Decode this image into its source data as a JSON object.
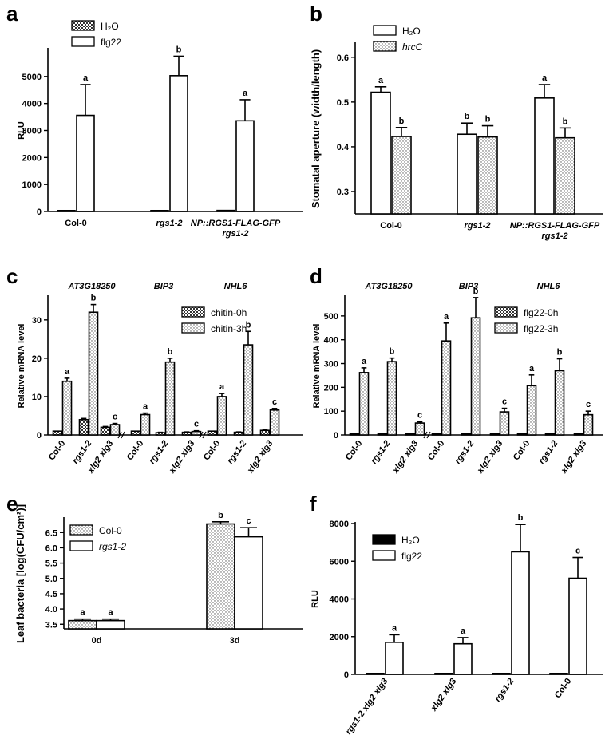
{
  "figure": {
    "panels": [
      "a",
      "b",
      "c",
      "d",
      "e",
      "f"
    ],
    "fill_colors": {
      "black": "#000000",
      "white": "#ffffff",
      "dots": "#e8e8e8",
      "checker": "#555555"
    }
  },
  "chart_data": [
    {
      "panel": "a",
      "type": "bar",
      "ylabel": "RLU",
      "ylim": [
        0,
        6000
      ],
      "yticks": [
        0,
        1000,
        2000,
        3000,
        4000,
        5000
      ],
      "categories": [
        "Col-0",
        "rgs1-2",
        "NP::RGS1-FLAG-GFP\nrgs1-2"
      ],
      "category_italic": [
        false,
        true,
        true
      ],
      "series": [
        {
          "name": "H2O",
          "legend": "H₂O",
          "pattern": "checker",
          "values": [
            30,
            30,
            40
          ],
          "errors": [
            0,
            0,
            0
          ],
          "letters": [
            "",
            "",
            ""
          ]
        },
        {
          "name": "flg22",
          "legend": "flg22",
          "pattern": "white",
          "values": [
            3560,
            5030,
            3360
          ],
          "errors": [
            1140,
            720,
            780
          ],
          "letters": [
            "a",
            "b",
            "a"
          ]
        }
      ]
    },
    {
      "panel": "b",
      "type": "bar",
      "ylabel": "Stomatal aperture (width/length)",
      "ylim": [
        0.25,
        0.63
      ],
      "yticks": [
        "0.3",
        "0.4",
        "0.5",
        "0.6"
      ],
      "categories": [
        "Col-0",
        "rgs1-2",
        "NP::RGS1-FLAG-GFP\nrgs1-2"
      ],
      "category_italic": [
        false,
        true,
        true
      ],
      "series": [
        {
          "name": "H2O",
          "legend": "H₂O",
          "pattern": "white",
          "values": [
            0.522,
            0.428,
            0.509
          ],
          "errors": [
            0.012,
            0.025,
            0.03
          ],
          "letters": [
            "a",
            "b",
            "a"
          ]
        },
        {
          "name": "hrcC",
          "legend": "hrcC",
          "legend_italic": true,
          "pattern": "dots",
          "values": [
            0.423,
            0.422,
            0.42
          ],
          "errors": [
            0.02,
            0.025,
            0.022
          ],
          "letters": [
            "b",
            "b",
            "b"
          ]
        }
      ]
    },
    {
      "panel": "c",
      "type": "bar",
      "ylabel": "Relative mRNA level",
      "ylim": [
        0,
        36
      ],
      "yticks": [
        0,
        10,
        20,
        30
      ],
      "gene_labels": [
        "AT3G18250",
        "BIP3",
        "NHL6"
      ],
      "categories": [
        "Col-0",
        "rgs1-2",
        "xlg2 xlg3",
        "Col-0",
        "rgs1-2",
        "xlg2 xlg3",
        "Col-0",
        "rgs1-2",
        "xlg2 xlg3"
      ],
      "category_italic": [
        false,
        true,
        true,
        false,
        true,
        true,
        false,
        true,
        true
      ],
      "series": [
        {
          "name": "chitin-0h",
          "legend": "chitin-0h",
          "pattern": "checker",
          "values": [
            1.0,
            4.0,
            2.0,
            1.0,
            0.6,
            0.7,
            1.0,
            0.7,
            1.2
          ],
          "errors": [
            0,
            0.3,
            0.2,
            0,
            0.1,
            0.1,
            0,
            0.1,
            0.1
          ],
          "letters": [
            "",
            "",
            "",
            "",
            "",
            "",
            "",
            "",
            ""
          ]
        },
        {
          "name": "chitin-3h",
          "legend": "chitin-3h",
          "pattern": "dots",
          "values": [
            14.0,
            32.0,
            2.7,
            5.3,
            19.0,
            0.9,
            10.0,
            23.5,
            6.5
          ],
          "errors": [
            0.8,
            2.0,
            0.3,
            0.4,
            1.0,
            0.2,
            0.8,
            3.5,
            0.4
          ],
          "letters": [
            "a",
            "b",
            "c",
            "a",
            "b",
            "c",
            "a",
            "b",
            "c"
          ]
        }
      ]
    },
    {
      "panel": "d",
      "type": "bar",
      "ylabel": "Relative mRNA level",
      "ylim": [
        0,
        580
      ],
      "yticks": [
        0,
        100,
        200,
        300,
        400,
        500
      ],
      "gene_labels": [
        "AT3G18250",
        "BIP3",
        "NHL6"
      ],
      "categories": [
        "Col-0",
        "rgs1-2",
        "xlg2 xlg3",
        "Col-0",
        "rgs1-2",
        "xlg2 xlg3",
        "Col-0",
        "rgs1-2",
        "xlg2 xlg3"
      ],
      "category_italic": [
        false,
        true,
        true,
        false,
        true,
        true,
        false,
        true,
        true
      ],
      "series": [
        {
          "name": "flg22-0h",
          "legend": "flg22-0h",
          "pattern": "checker",
          "values": [
            1,
            1,
            1,
            1,
            1,
            1,
            1,
            1,
            1
          ],
          "errors": [
            0,
            0,
            0,
            0,
            0,
            0,
            0,
            0,
            0
          ],
          "letters": [
            "",
            "",
            "",
            "",
            "",
            "",
            "",
            "",
            ""
          ]
        },
        {
          "name": "flg22-3h",
          "legend": "flg22-3h",
          "pattern": "dots",
          "values": [
            262,
            308,
            50,
            395,
            492,
            97,
            207,
            270,
            85
          ],
          "errors": [
            20,
            15,
            5,
            75,
            85,
            15,
            45,
            50,
            15
          ],
          "letters": [
            "a",
            "b",
            "c",
            "a",
            "b",
            "c",
            "a",
            "b",
            "c"
          ]
        }
      ]
    },
    {
      "panel": "e",
      "type": "bar",
      "ylabel": "Leaf bacteria [log(CFU/cm²)]",
      "ylim": [
        3.35,
        6.95
      ],
      "yticks": [
        "3.5",
        "4.0",
        "4.5",
        "5.0",
        "5.5",
        "6.0",
        "6.5"
      ],
      "categories": [
        "0d",
        "3d"
      ],
      "category_italic": [
        false,
        false
      ],
      "series": [
        {
          "name": "Col-0",
          "legend": "Col-0",
          "pattern": "dots",
          "values": [
            3.62,
            6.78
          ],
          "errors": [
            0.05,
            0.07
          ],
          "letters": [
            "a",
            "b"
          ]
        },
        {
          "name": "rgs1-2",
          "legend": "rgs1-2",
          "legend_italic": true,
          "pattern": "white",
          "values": [
            3.62,
            6.36
          ],
          "errors": [
            0.05,
            0.3
          ],
          "letters": [
            "a",
            "c"
          ]
        }
      ]
    },
    {
      "panel": "f",
      "type": "bar",
      "ylabel": "RLU",
      "ylim": [
        0,
        8000
      ],
      "yticks": [
        0,
        2000,
        4000,
        6000,
        8000
      ],
      "categories": [
        "rgs1-2 xlg2 xlg3",
        "xlg2 xlg3",
        "rgs1-2",
        "Col-0"
      ],
      "category_italic": [
        true,
        true,
        true,
        false
      ],
      "series": [
        {
          "name": "H2O",
          "legend": "H₂O",
          "pattern": "black",
          "values": [
            20,
            20,
            20,
            20
          ],
          "errors": [
            0,
            0,
            0,
            0
          ],
          "letters": [
            "",
            "",
            "",
            ""
          ]
        },
        {
          "name": "flg22",
          "legend": "flg22",
          "pattern": "white",
          "values": [
            1700,
            1620,
            6500,
            5100
          ],
          "errors": [
            400,
            330,
            1450,
            1100
          ],
          "letters": [
            "a",
            "a",
            "b",
            "c"
          ]
        }
      ]
    }
  ]
}
